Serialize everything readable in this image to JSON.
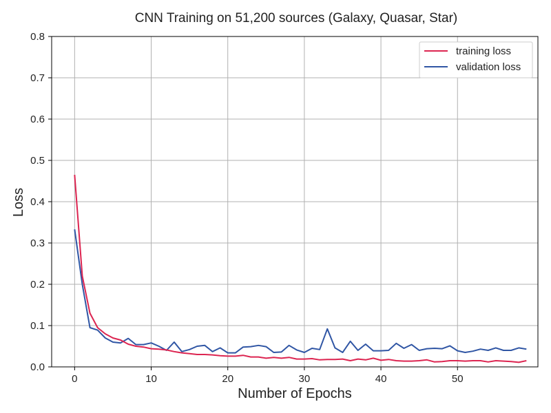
{
  "chart_data": {
    "type": "line",
    "title": "CNN Training on 51,200 sources (Galaxy, Quasar, Star)",
    "xlabel": "Number of Epochs",
    "ylabel": "Loss",
    "xlim": [
      -3,
      60.5
    ],
    "ylim": [
      0,
      0.8
    ],
    "xticks": [
      0,
      10,
      20,
      30,
      40,
      50
    ],
    "yticks": [
      0.0,
      0.1,
      0.2,
      0.3,
      0.4,
      0.5,
      0.6,
      0.7,
      0.8
    ],
    "grid": true,
    "legend_position": "top-right",
    "colors": {
      "training": "#dc2450",
      "validation": "#2f55a4",
      "grid": "#b0b0b0"
    },
    "series": [
      {
        "name": "training loss",
        "color": "#dc2450",
        "x": [
          0,
          1,
          2,
          3,
          4,
          5,
          6,
          7,
          8,
          9,
          10,
          11,
          12,
          13,
          14,
          15,
          16,
          17,
          18,
          19,
          20,
          21,
          22,
          23,
          24,
          25,
          26,
          27,
          28,
          29,
          30,
          31,
          32,
          33,
          34,
          35,
          36,
          37,
          38,
          39,
          40,
          41,
          42,
          43,
          44,
          45,
          46,
          47,
          48,
          49,
          50,
          51,
          52,
          53,
          54,
          55,
          56,
          57,
          58,
          59
        ],
        "values": [
          0.465,
          0.22,
          0.13,
          0.095,
          0.08,
          0.07,
          0.065,
          0.055,
          0.05,
          0.048,
          0.044,
          0.043,
          0.041,
          0.037,
          0.034,
          0.032,
          0.03,
          0.03,
          0.029,
          0.027,
          0.026,
          0.026,
          0.028,
          0.024,
          0.024,
          0.021,
          0.023,
          0.021,
          0.023,
          0.019,
          0.019,
          0.02,
          0.017,
          0.018,
          0.018,
          0.019,
          0.015,
          0.019,
          0.017,
          0.021,
          0.016,
          0.018,
          0.015,
          0.014,
          0.014,
          0.015,
          0.017,
          0.012,
          0.013,
          0.015,
          0.015,
          0.014,
          0.015,
          0.015,
          0.012,
          0.015,
          0.014,
          0.013,
          0.011,
          0.015
        ]
      },
      {
        "name": "validation loss",
        "color": "#2f55a4",
        "x": [
          0,
          1,
          2,
          3,
          4,
          5,
          6,
          7,
          8,
          9,
          10,
          11,
          12,
          13,
          14,
          15,
          16,
          17,
          18,
          19,
          20,
          21,
          22,
          23,
          24,
          25,
          26,
          27,
          28,
          29,
          30,
          31,
          32,
          33,
          34,
          35,
          36,
          37,
          38,
          39,
          40,
          41,
          42,
          43,
          44,
          45,
          46,
          47,
          48,
          49,
          50,
          51,
          52,
          53,
          54,
          55,
          56,
          57,
          58,
          59
        ],
        "values": [
          0.333,
          0.2,
          0.095,
          0.089,
          0.07,
          0.06,
          0.058,
          0.069,
          0.054,
          0.054,
          0.058,
          0.05,
          0.04,
          0.06,
          0.037,
          0.042,
          0.05,
          0.052,
          0.037,
          0.046,
          0.034,
          0.034,
          0.048,
          0.049,
          0.052,
          0.049,
          0.035,
          0.036,
          0.052,
          0.041,
          0.035,
          0.045,
          0.042,
          0.092,
          0.046,
          0.035,
          0.062,
          0.04,
          0.055,
          0.039,
          0.039,
          0.04,
          0.057,
          0.045,
          0.054,
          0.04,
          0.044,
          0.045,
          0.044,
          0.051,
          0.039,
          0.035,
          0.038,
          0.043,
          0.04,
          0.046,
          0.04,
          0.04,
          0.046,
          0.043
        ]
      }
    ]
  }
}
